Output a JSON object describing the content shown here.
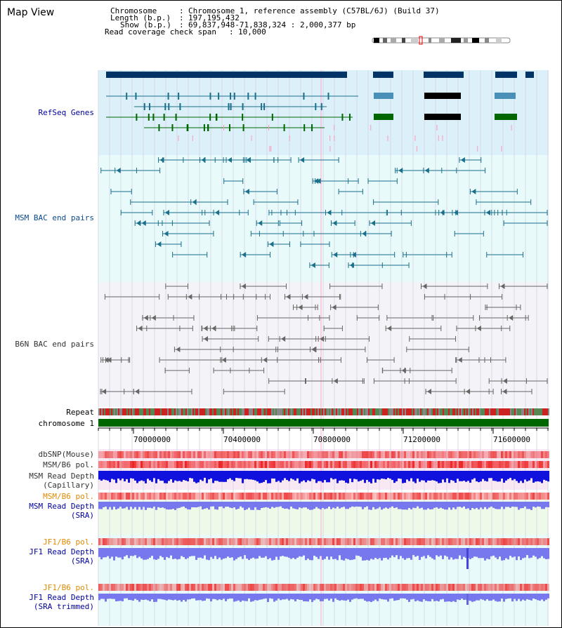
{
  "title": "Map View",
  "info": {
    "chromosome_label": "Chromosome",
    "chromosome_value": "Chromosome 1, reference assembly (C57BL/6J) (Build 37)",
    "length_label": "Length (b.p.)",
    "length_value": "197,195,432",
    "show_label": "Show (b.p.)",
    "show_value": "69,837,948-71,838,324 : 2,000,377 bp",
    "coverage_label": "Read coverage check span",
    "coverage_value": "10,000"
  },
  "tracks": {
    "refseq": "RefSeq Genes",
    "msm_bac": "MSM BAC end pairs",
    "b6n_bac": "B6N BAC end pairs",
    "repeat": "Repeat",
    "chromosome": "chromosome 1",
    "dbsnp": "dbSNP(Mouse)",
    "msm_b6_pol": "MSM/B6 pol.",
    "msm_depth_cap_1": "MSM Read Depth",
    "msm_depth_cap_2": "(Capillary)",
    "msm_b6_pol2": "MSM/B6 pol.",
    "msm_depth_sra_1": "MSM Read Depth",
    "msm_depth_sra_2": "(SRA)",
    "jf1_pol": "JF1/B6 pol.",
    "jf1_depth_1": "JF1 Read Depth",
    "jf1_depth_2": "(SRA)",
    "jf1_pol2": "JF1/B6 pol.",
    "jf1_trim_1": "JF1 Read Depth",
    "jf1_trim_2": "(SRA trimmed)"
  },
  "axis": {
    "ticks": [
      "70000000",
      "70400000",
      "70800000",
      "71200000",
      "71600000"
    ]
  },
  "colors": {
    "refseq_bg": "#dcf0fa",
    "bac_bg": "#e8fafa",
    "b6n_bg": "#f3f3f8",
    "navy": "#003366",
    "teal": "#1a6f8a",
    "green": "#006600",
    "pink": "#ff99bb",
    "grid": "#d8d8e8",
    "chromosome": "#006600",
    "pol_red": "#ee3333",
    "depth_blue": "#1111dd",
    "depth_light": "#7777ee"
  }
}
